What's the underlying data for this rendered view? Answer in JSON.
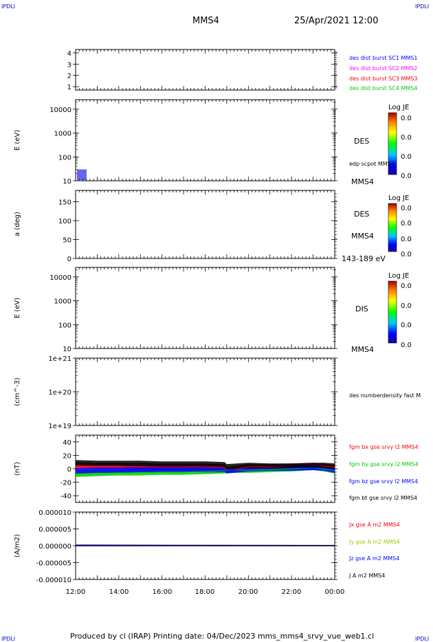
{
  "header": {
    "corner_tl": "IPDLI",
    "corner_tr": "IPDLI",
    "corner_bl": "IPDLI",
    "corner_br": "IPDLI",
    "spacecraft": "MMS4",
    "datetime": "25/Apr/2021 12:00"
  },
  "footer": {
    "text": "Produced by cl (IRAP)   Printing date: 04/Dec/2023   mms_mms4_srvy_vue_web1.cl"
  },
  "colors": {
    "blue": "#0000ff",
    "magenta": "#ff00ff",
    "red": "#ff0000",
    "green": "#00cc00",
    "black": "#000000",
    "yellowgreen": "#99cc00"
  },
  "colorbar": {
    "title": "Log JE",
    "ticks": [
      "0.0",
      "0.0",
      "0.0",
      "0.0"
    ]
  },
  "chart_data": [
    {
      "type": "line",
      "panel": "burst",
      "yticks": [
        "1",
        "2",
        "3",
        "4"
      ],
      "ylim": [
        0.7,
        4.3
      ],
      "legend": [
        {
          "label": "des dist burst SC1 MMS1",
          "color": "#0000ff"
        },
        {
          "label": "des dist burst SC2 MMS2",
          "color": "#ff00ff"
        },
        {
          "label": "des dist burst SC3 MMS3",
          "color": "#ff0000"
        },
        {
          "label": "des dist burst SC4 MMS4",
          "color": "#00cc00"
        }
      ]
    },
    {
      "type": "heatmap",
      "panel": "des-energy",
      "ylabel": "E (eV)",
      "yscale": "log",
      "yticks": [
        "10",
        "100",
        "1000",
        "10000"
      ],
      "ylim": [
        10,
        25000
      ],
      "right_labels": [
        "DES",
        "edp scpot MMS4",
        "MMS4"
      ]
    },
    {
      "type": "heatmap",
      "panel": "des-pitch",
      "ylabel": "a (deg)",
      "yticks": [
        "0",
        "50",
        "100",
        "150"
      ],
      "ylim": [
        0,
        180
      ],
      "right_labels": [
        "DES",
        "MMS4",
        "143-189 eV"
      ]
    },
    {
      "type": "heatmap",
      "panel": "dis-energy",
      "ylabel": "E (eV)",
      "yscale": "log",
      "yticks": [
        "10",
        "100",
        "1000",
        "10000"
      ],
      "ylim": [
        10,
        25000
      ],
      "right_labels": [
        "DIS",
        "MMS4"
      ]
    },
    {
      "type": "line",
      "panel": "density",
      "ylabel": "(cm^-3)",
      "yscale": "log",
      "yticks": [
        "1e+19",
        "1e+20",
        "1e+21"
      ],
      "ylim": [
        1e+19,
        1e+21
      ],
      "legend": [
        {
          "label": "des numberdensity fast M",
          "color": "#000000"
        }
      ]
    },
    {
      "type": "line",
      "panel": "fgm",
      "ylabel": "(nT)",
      "yticks": [
        "-40",
        "-20",
        "0",
        "20",
        "40"
      ],
      "ylim": [
        -50,
        50
      ],
      "x": [
        12,
        13,
        14,
        15,
        16,
        17,
        18,
        18.9,
        19,
        20,
        21,
        22,
        23,
        23.5,
        24
      ],
      "series": [
        {
          "name": "fgm bx gse srvy l2 MMS4",
          "color": "#ff0000",
          "values": [
            4,
            4,
            4,
            3,
            3,
            3,
            3,
            2,
            -3,
            3,
            3,
            4,
            5,
            4,
            2
          ]
        },
        {
          "name": "fgm by gse srvy l2 MMS4",
          "color": "#00cc00",
          "values": [
            -8,
            -7,
            -6,
            -6,
            -5,
            -5,
            -4,
            -3,
            -2,
            -2,
            -1,
            0,
            2,
            0,
            -3
          ]
        },
        {
          "name": "fgm bz gse srvy l2 MMS4",
          "color": "#0000ff",
          "values": [
            -3,
            -2,
            -2,
            -1,
            -1,
            -1,
            -1,
            -1,
            -3,
            0,
            1,
            1,
            2,
            1,
            -2
          ]
        },
        {
          "name": "fgm bt gse srvy l2 MMS4",
          "color": "#000000",
          "values": [
            9,
            8,
            8,
            8,
            7,
            7,
            7,
            6,
            3,
            5,
            4,
            4,
            5,
            5,
            4
          ]
        }
      ],
      "spread": [
        4,
        4,
        4,
        4
      ]
    },
    {
      "type": "line",
      "panel": "current",
      "ylabel": "(A/m2)",
      "yticks": [
        "-0.000010",
        "-0.000005",
        "0.000000",
        "0.000005",
        "0.000010"
      ],
      "ylim": [
        -1e-05,
        1e-05
      ],
      "x": [
        12,
        24
      ],
      "series": [
        {
          "name": "Jx gse A m2 MMS4",
          "color": "#ff0000",
          "values": [
            0,
            0
          ]
        },
        {
          "name": "Jy gse A m2 MMS4",
          "color": "#99cc00",
          "values": [
            0,
            0
          ]
        },
        {
          "name": "Jz gse A m2 MMS4",
          "color": "#0000ff",
          "values": [
            0,
            0
          ]
        },
        {
          "name": "J A m2 MMS4",
          "color": "#000000",
          "values": [
            2e-07,
            1e-07
          ]
        }
      ]
    }
  ],
  "xaxis": {
    "ticks": [
      "12:00",
      "14:00",
      "16:00",
      "18:00",
      "20:00",
      "22:00",
      "00:00"
    ],
    "range_hours": [
      12,
      24
    ]
  }
}
